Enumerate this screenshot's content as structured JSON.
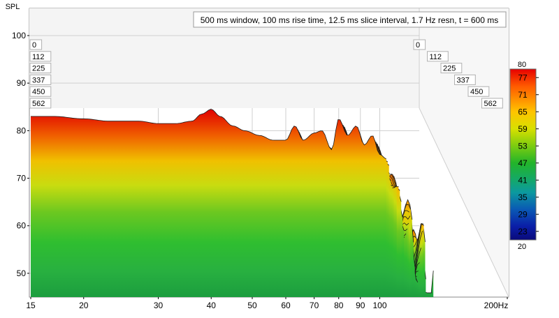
{
  "chart_data": {
    "type": "waterfall",
    "title": "500 ms window, 100 ms rise time, 12.5 ms slice interval, 1.7 Hz resn, t = 600 ms",
    "ylabel": "SPL",
    "xlabel": "Hz",
    "y_ticks": [
      "100",
      "90",
      "80",
      "70",
      "60",
      "50"
    ],
    "ylim": [
      45,
      105
    ],
    "x_ticks": [
      "15",
      "20",
      "30",
      "40",
      "50",
      "60",
      "70",
      "80",
      "90",
      "100",
      "200Hz"
    ],
    "x_tick_values": [
      15,
      20,
      30,
      40,
      50,
      60,
      70,
      80,
      90,
      100,
      200
    ],
    "xlim": [
      15,
      200
    ],
    "time_labels": [
      "0",
      "112",
      "225",
      "337",
      "450",
      "562"
    ],
    "time_unit": "ms",
    "colorbar": {
      "min": 20,
      "max": 80,
      "min_label": "20",
      "max_label": "80",
      "tick_labels": [
        "77",
        "71",
        "65",
        "59",
        "53",
        "47",
        "41",
        "35",
        "29",
        "23"
      ]
    },
    "front_slice": {
      "time": "0",
      "freq": [
        15,
        17,
        20,
        23,
        27,
        30,
        33,
        36,
        38,
        40,
        42,
        45,
        48,
        52,
        56,
        60,
        63,
        66,
        70,
        73,
        77,
        80,
        84,
        88,
        92,
        96,
        100,
        104
      ],
      "spl": [
        83,
        83,
        82.5,
        82,
        82,
        81.5,
        81.5,
        82,
        83.5,
        84.5,
        83,
        81,
        80,
        79,
        78,
        78,
        81,
        78,
        79.5,
        80,
        76,
        82.5,
        79,
        81,
        77,
        79,
        75,
        74
      ]
    },
    "colors": {
      "background": "#ffffff",
      "plot_floor": "#f2f2f2",
      "grid": "#c9c9c9",
      "contour": "#1a1a1a",
      "tick_text": "#000000"
    }
  }
}
